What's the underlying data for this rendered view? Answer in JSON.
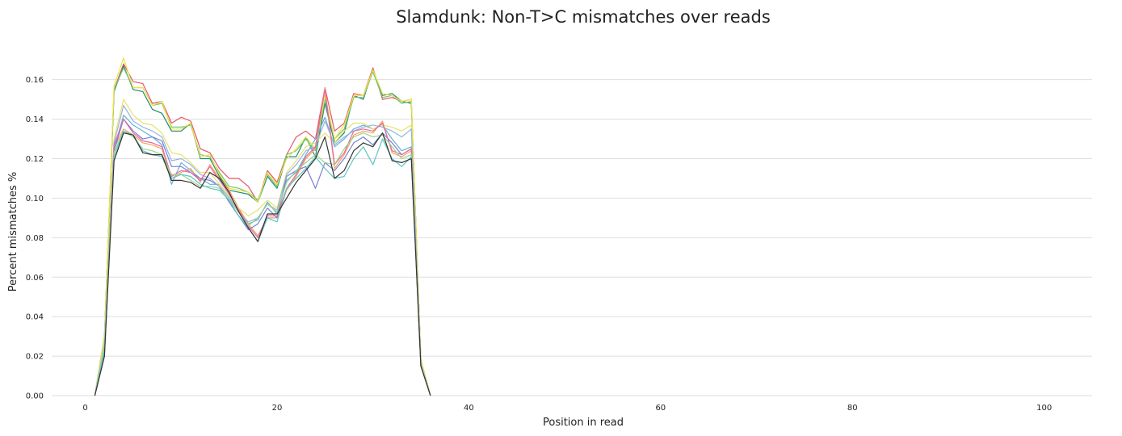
{
  "chart_data": {
    "type": "line",
    "title": "Slamdunk: Non-T>C mismatches over reads",
    "xlabel": "Position in read",
    "ylabel": "Percent mismatches %",
    "xlim": [
      -3.5,
      105
    ],
    "ylim": [
      0,
      0.175
    ],
    "xticks": [
      0,
      20,
      40,
      60,
      80,
      100
    ],
    "yticks": [
      0.0,
      0.02,
      0.04,
      0.06,
      0.08,
      0.1,
      0.12,
      0.14,
      0.16
    ],
    "grid": "horizontal",
    "legend": "none",
    "x": [
      1,
      2,
      3,
      4,
      5,
      6,
      7,
      8,
      9,
      10,
      11,
      12,
      13,
      14,
      15,
      16,
      17,
      18,
      19,
      20,
      21,
      22,
      23,
      24,
      25,
      26,
      27,
      28,
      29,
      30,
      31,
      32,
      33,
      34,
      35,
      36
    ],
    "series": [
      {
        "color": "#e7546b",
        "values": [
          0,
          0.03,
          0.155,
          0.168,
          0.159,
          0.158,
          0.148,
          0.149,
          0.138,
          0.141,
          0.139,
          0.125,
          0.123,
          0.115,
          0.11,
          0.11,
          0.106,
          0.098,
          0.114,
          0.108,
          0.122,
          0.131,
          0.134,
          0.13,
          0.156,
          0.134,
          0.138,
          0.153,
          0.152,
          0.166,
          0.15,
          0.151,
          0.149,
          0.15,
          0.018,
          0
        ]
      },
      {
        "color": "#1e8a74",
        "values": [
          0,
          0.03,
          0.154,
          0.167,
          0.155,
          0.154,
          0.145,
          0.143,
          0.134,
          0.134,
          0.138,
          0.12,
          0.12,
          0.111,
          0.104,
          0.103,
          0.102,
          0.098,
          0.111,
          0.105,
          0.121,
          0.121,
          0.131,
          0.121,
          0.148,
          0.128,
          0.133,
          0.152,
          0.15,
          0.165,
          0.152,
          0.153,
          0.149,
          0.148,
          0.018,
          0
        ]
      },
      {
        "color": "#74c476",
        "values": [
          0,
          0.03,
          0.155,
          0.166,
          0.156,
          0.156,
          0.147,
          0.148,
          0.136,
          0.136,
          0.137,
          0.122,
          0.121,
          0.113,
          0.106,
          0.105,
          0.103,
          0.099,
          0.112,
          0.106,
          0.122,
          0.124,
          0.13,
          0.124,
          0.15,
          0.13,
          0.135,
          0.151,
          0.151,
          0.164,
          0.151,
          0.152,
          0.148,
          0.149,
          0.018,
          0
        ]
      },
      {
        "color": "#f0e442",
        "values": [
          0,
          0.03,
          0.157,
          0.171,
          0.156,
          0.156,
          0.147,
          0.149,
          0.135,
          0.135,
          0.138,
          0.121,
          0.122,
          0.112,
          0.105,
          0.104,
          0.103,
          0.098,
          0.113,
          0.107,
          0.12,
          0.125,
          0.131,
          0.125,
          0.152,
          0.13,
          0.137,
          0.152,
          0.152,
          0.165,
          0.153,
          0.152,
          0.149,
          0.15,
          0.018,
          0
        ]
      },
      {
        "color": "#6aaed6",
        "values": [
          0,
          0.025,
          0.125,
          0.142,
          0.137,
          0.134,
          0.131,
          0.127,
          0.107,
          0.118,
          0.114,
          0.11,
          0.107,
          0.107,
          0.101,
          0.094,
          0.087,
          0.089,
          0.098,
          0.092,
          0.109,
          0.113,
          0.122,
          0.13,
          0.141,
          0.126,
          0.13,
          0.135,
          0.137,
          0.135,
          0.137,
          0.13,
          0.124,
          0.126,
          0.016,
          0
        ]
      },
      {
        "color": "#f4a261",
        "values": [
          0,
          0.022,
          0.125,
          0.135,
          0.132,
          0.128,
          0.127,
          0.125,
          0.11,
          0.113,
          0.115,
          0.108,
          0.117,
          0.11,
          0.104,
          0.095,
          0.087,
          0.081,
          0.09,
          0.09,
          0.104,
          0.111,
          0.12,
          0.125,
          0.156,
          0.115,
          0.122,
          0.132,
          0.134,
          0.133,
          0.139,
          0.123,
          0.121,
          0.124,
          0.015,
          0
        ]
      },
      {
        "color": "#7a7fd6",
        "values": [
          0,
          0.02,
          0.124,
          0.14,
          0.134,
          0.13,
          0.131,
          0.129,
          0.116,
          0.116,
          0.113,
          0.11,
          0.109,
          0.106,
          0.098,
          0.091,
          0.084,
          0.087,
          0.095,
          0.09,
          0.111,
          0.114,
          0.116,
          0.105,
          0.118,
          0.114,
          0.12,
          0.128,
          0.131,
          0.127,
          0.133,
          0.128,
          0.122,
          0.125,
          0.016,
          0
        ]
      },
      {
        "color": "#e9e16a",
        "values": [
          0,
          0.028,
          0.13,
          0.15,
          0.142,
          0.138,
          0.137,
          0.133,
          0.123,
          0.122,
          0.118,
          0.113,
          0.113,
          0.107,
          0.101,
          0.095,
          0.091,
          0.094,
          0.099,
          0.095,
          0.113,
          0.119,
          0.126,
          0.128,
          0.133,
          0.128,
          0.134,
          0.138,
          0.138,
          0.135,
          0.137,
          0.136,
          0.134,
          0.137,
          0.016,
          0
        ]
      },
      {
        "color": "#94b5e0",
        "values": [
          0,
          0.026,
          0.128,
          0.147,
          0.139,
          0.136,
          0.134,
          0.131,
          0.119,
          0.12,
          0.117,
          0.112,
          0.11,
          0.106,
          0.1,
          0.093,
          0.088,
          0.09,
          0.097,
          0.094,
          0.112,
          0.117,
          0.124,
          0.126,
          0.139,
          0.127,
          0.131,
          0.134,
          0.136,
          0.137,
          0.136,
          0.134,
          0.131,
          0.135,
          0.016,
          0
        ]
      },
      {
        "color": "#e46a9e",
        "values": [
          0,
          0.022,
          0.127,
          0.14,
          0.133,
          0.129,
          0.128,
          0.126,
          0.111,
          0.114,
          0.113,
          0.109,
          0.116,
          0.109,
          0.102,
          0.094,
          0.086,
          0.08,
          0.091,
          0.091,
          0.105,
          0.112,
          0.121,
          0.126,
          0.155,
          0.117,
          0.123,
          0.134,
          0.135,
          0.134,
          0.138,
          0.124,
          0.122,
          0.125,
          0.015,
          0
        ]
      },
      {
        "color": "#9bd38a",
        "values": [
          0,
          0.024,
          0.123,
          0.134,
          0.131,
          0.125,
          0.124,
          0.122,
          0.112,
          0.112,
          0.109,
          0.106,
          0.106,
          0.105,
          0.099,
          0.093,
          0.086,
          0.09,
          0.097,
          0.093,
          0.108,
          0.114,
          0.118,
          0.122,
          0.118,
          0.117,
          0.125,
          0.131,
          0.133,
          0.131,
          0.132,
          0.126,
          0.12,
          0.122,
          0.015,
          0
        ]
      },
      {
        "color": "#5ec5c5",
        "values": [
          0,
          0.022,
          0.121,
          0.134,
          0.132,
          0.124,
          0.122,
          0.121,
          0.11,
          0.112,
          0.111,
          0.107,
          0.105,
          0.104,
          0.099,
          0.091,
          0.085,
          0.078,
          0.09,
          0.088,
          0.105,
          0.11,
          0.115,
          0.121,
          0.115,
          0.11,
          0.111,
          0.12,
          0.126,
          0.117,
          0.13,
          0.12,
          0.116,
          0.121,
          0.015,
          0
        ]
      },
      {
        "color": "#333333",
        "values": [
          0,
          0.02,
          0.119,
          0.133,
          0.132,
          0.123,
          0.122,
          0.122,
          0.109,
          0.109,
          0.108,
          0.105,
          0.113,
          0.11,
          0.103,
          0.093,
          0.085,
          0.078,
          0.092,
          0.092,
          0.1,
          0.108,
          0.114,
          0.12,
          0.131,
          0.11,
          0.114,
          0.124,
          0.128,
          0.126,
          0.133,
          0.119,
          0.118,
          0.12,
          0.015,
          0
        ]
      }
    ]
  }
}
